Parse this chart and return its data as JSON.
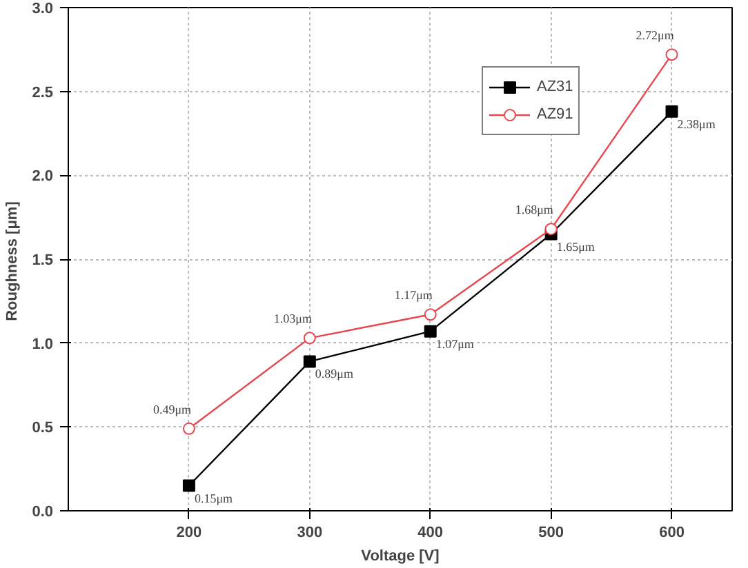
{
  "chart_data": {
    "type": "line",
    "xlabel": "Voltage [V]",
    "ylabel": "Roughness  [μm]",
    "x": [
      200,
      300,
      400,
      500,
      600
    ],
    "series": [
      {
        "name": "AZ31",
        "color": "#000000",
        "marker": "square",
        "values": [
          0.15,
          0.89,
          1.07,
          1.65,
          2.38
        ],
        "value_labels": [
          "0.15μm",
          "0.89μm",
          "1.07μm",
          "1.65μm",
          "2.38μm"
        ]
      },
      {
        "name": "AZ91",
        "color": "#e8474f",
        "marker": "circle",
        "values": [
          0.49,
          1.03,
          1.17,
          1.68,
          2.72
        ],
        "value_labels": [
          "0.49μm",
          "1.03μm",
          "1.17μm",
          "1.68μm",
          "2.72μm"
        ]
      }
    ],
    "xlim": [
      100,
      650
    ],
    "ylim": [
      0,
      3
    ],
    "xticks": [
      200,
      300,
      400,
      500,
      600
    ],
    "yticks": [
      {
        "value": 0,
        "label": "0.0"
      },
      {
        "value": 0.5,
        "label": "0.5"
      },
      {
        "value": 1,
        "label": "1.0"
      },
      {
        "value": 1.5,
        "label": "1.5"
      },
      {
        "value": 2,
        "label": "2.0"
      },
      {
        "value": 2.5,
        "label": "2.5"
      },
      {
        "value": 3,
        "label": "3.0"
      }
    ],
    "grid": true,
    "legend": "top right",
    "line_style": "solid"
  }
}
